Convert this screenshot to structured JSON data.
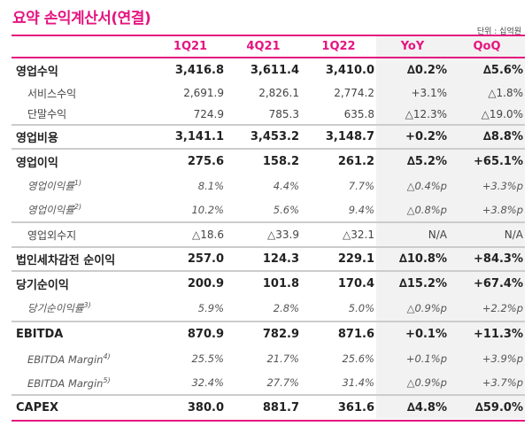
{
  "title": "요약 손익계산서(연결)",
  "unit": "단위 : 십억원",
  "accent_color": "#e5147f",
  "columns": [
    "1Q21",
    "4Q21",
    "1Q22",
    "YoY",
    "QoQ"
  ],
  "rows": [
    {
      "label": "영업수익",
      "values": [
        "3,416.8",
        "3,611.4",
        "3,410.0",
        "∆0.2%",
        "∆5.6%"
      ]
    },
    {
      "label": "서비스수익",
      "values": [
        "2,691.9",
        "2,826.1",
        "2,774.2",
        "+3.1%",
        "△1.8%"
      ]
    },
    {
      "label": "단말수익",
      "values": [
        "724.9",
        "785.3",
        "635.8",
        "△12.3%",
        "△19.0%"
      ]
    },
    {
      "label": "영업비용",
      "values": [
        "3,141.1",
        "3,453.2",
        "3,148.7",
        "+0.2%",
        "∆8.8%"
      ]
    },
    {
      "label": "영업이익",
      "values": [
        "275.6",
        "158.2",
        "261.2",
        "∆5.2%",
        "+65.1%"
      ]
    },
    {
      "label": "영업이익률",
      "note": "1)",
      "values": [
        "8.1%",
        "4.4%",
        "7.7%",
        "△0.4%p",
        "+3.3%p"
      ]
    },
    {
      "label": "영업이익률",
      "note": "2)",
      "values": [
        "10.2%",
        "5.6%",
        "9.4%",
        "△0.8%p",
        "+3.8%p"
      ]
    },
    {
      "label": "영업외수지",
      "values": [
        "△18.6",
        "△33.9",
        "△32.1",
        "N/A",
        "N/A"
      ]
    },
    {
      "label": "법인세차감전 순이익",
      "values": [
        "257.0",
        "124.3",
        "229.1",
        "∆10.8%",
        "+84.3%"
      ]
    },
    {
      "label": "당기순이익",
      "values": [
        "200.9",
        "101.8",
        "170.4",
        "∆15.2%",
        "+67.4%"
      ]
    },
    {
      "label": "당기순이익률",
      "note": "3)",
      "values": [
        "5.9%",
        "2.8%",
        "5.0%",
        "△0.9%p",
        "+2.2%p"
      ]
    },
    {
      "label": "EBITDA",
      "values": [
        "870.9",
        "782.9",
        "871.6",
        "+0.1%",
        "+11.3%"
      ]
    },
    {
      "label": "EBITDA Margin",
      "note": "4)",
      "values": [
        "25.5%",
        "21.7%",
        "25.6%",
        "+0.1%p",
        "+3.9%p"
      ]
    },
    {
      "label": "EBITDA Margin",
      "note": "5)",
      "values": [
        "32.4%",
        "27.7%",
        "31.4%",
        "△0.9%p",
        "+3.7%p"
      ]
    },
    {
      "label": "CAPEX",
      "values": [
        "380.0",
        "881.7",
        "361.6",
        "∆4.8%",
        "∆59.0%"
      ]
    }
  ]
}
